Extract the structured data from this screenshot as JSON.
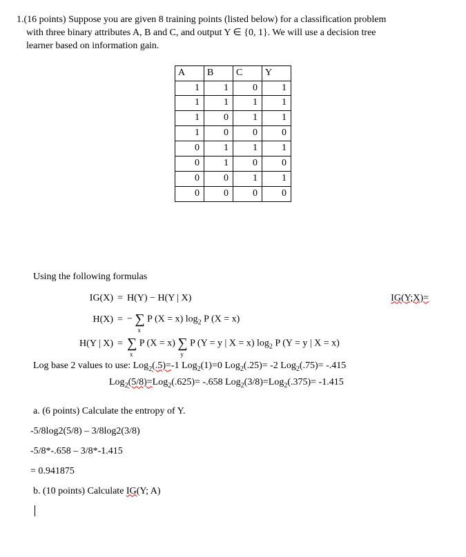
{
  "problem": {
    "number_points": "1.(16 points)",
    "text_line1": "Suppose you are given 8 training points (listed below) for a classification problem",
    "text_line2": "with three binary attributes A, B and C, and output Y ∈ {0, 1}. We will use a decision tree",
    "text_line3": "learner based on information gain."
  },
  "table": {
    "headers": [
      "A",
      "B",
      "C",
      "Y"
    ],
    "rows": [
      [
        1,
        1,
        0,
        1
      ],
      [
        1,
        1,
        1,
        1
      ],
      [
        1,
        0,
        1,
        1
      ],
      [
        1,
        0,
        0,
        0
      ],
      [
        0,
        1,
        1,
        1
      ],
      [
        0,
        1,
        0,
        0
      ],
      [
        0,
        0,
        1,
        1
      ],
      [
        0,
        0,
        0,
        0
      ]
    ]
  },
  "formulas": {
    "intro": "Using the following formulas",
    "ig_lhs": "IG(X)",
    "ig_rhs": "H(Y) − H(Y | X)",
    "ig_right": "IG(Y;X)=",
    "hx_lhs": "H(X)",
    "hx_rhs_pre": "−",
    "hx_rhs_post": "P (X = x) log",
    "hx_rhs_post2": " P (X = x)",
    "hyx_lhs": "H(Y | X)",
    "hyx_rhs1": "P (X = x)",
    "hyx_rhs2": "P (Y = y | X = x) log",
    "hyx_rhs3": " P (Y = y | X = x)"
  },
  "logvals": {
    "line1_pre": "Log base 2 values to use: Log",
    "line1_a": "(.5)=",
    "line1_a2": "-1   Log",
    "line1_b": "(1)=0    Log",
    "line1_c": "(.25)= -2    Log",
    "line1_d": "(.75)= -.415",
    "line2_pre": "Log",
    "line2_a": "(5/8)=",
    "line2_a2": "Log",
    "line2_b": "(.625)= -.658   Log",
    "line2_c": "(3/8)=Log",
    "line2_d": "(.375)= -1.415"
  },
  "part_a": {
    "label": "a.   (6 points) Calculate the entropy of Y.",
    "work1": "-5/8log2(5/8) – 3/8log2(3/8)",
    "work2": "-5/8*-.658 – 3/8*-1.415",
    "work3": "= 0.941875"
  },
  "part_b": {
    "label_pre": "b.   (10 points) Calculate ",
    "label_under": "IG(",
    "label_post": "Y; A)"
  }
}
